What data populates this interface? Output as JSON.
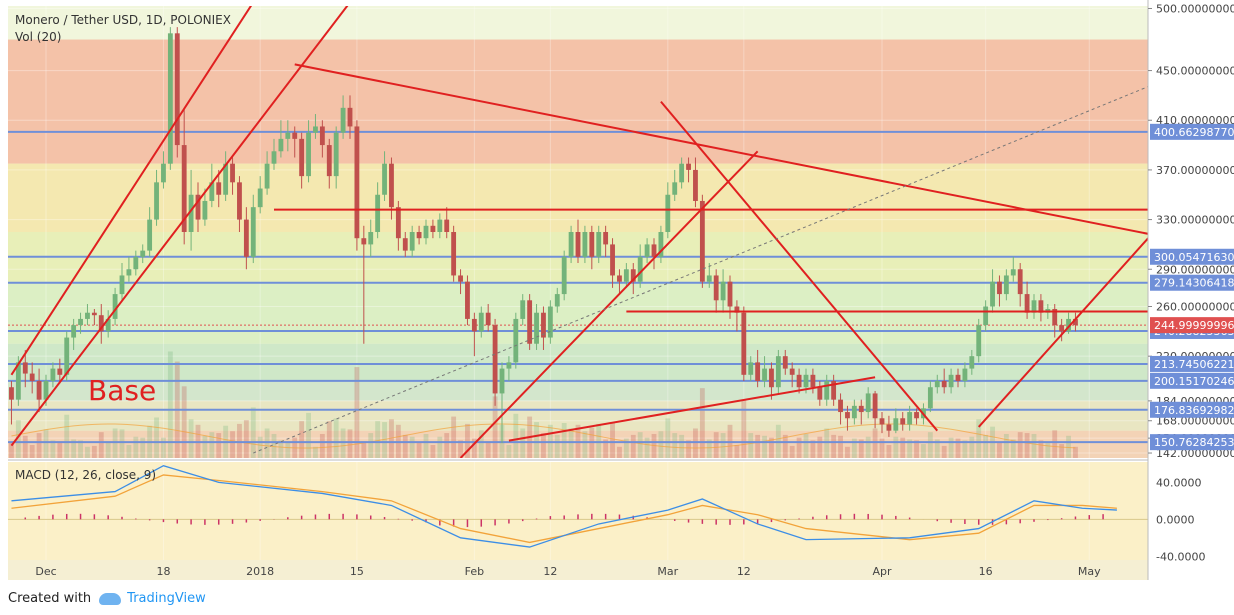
{
  "header": {
    "symbol_title": "Monero / Tether USD, 1D, POLONIEX",
    "volume_label": "Vol (20)",
    "macd_label": "MACD (12, 26, close, 9)"
  },
  "annotations": {
    "base_label": "Base"
  },
  "footer": {
    "created_with": "Created with",
    "brand": "TradingView"
  },
  "colors": {
    "bull": "#73b37a",
    "bear": "#c0504d",
    "trend": "#e02020",
    "level": "#6f8fd8",
    "price_tag": "#e05050",
    "tag_blue": "#6f8fd8",
    "macd": "#3c8ee6",
    "signal": "#f2a33a",
    "hist": "#cc3366"
  },
  "chart_data": {
    "type": "candlestick",
    "title": "Monero / Tether USD, 1D, POLONIEX",
    "price_axis": {
      "range": [
        138,
        502
      ],
      "ticks": [
        {
          "v": 500,
          "label": "500.00000000"
        },
        {
          "v": 450,
          "label": "450.00000000"
        },
        {
          "v": 410,
          "label": "410.00000000"
        },
        {
          "v": 370,
          "label": "370.00000000"
        },
        {
          "v": 330,
          "label": "330.00000000"
        },
        {
          "v": 290,
          "label": "290.00000000"
        },
        {
          "v": 260,
          "label": "260.00000000"
        },
        {
          "v": 220,
          "label": "220.00000000"
        },
        {
          "v": 184,
          "label": "184.00000000"
        },
        {
          "v": 168,
          "label": "168.00000000"
        },
        {
          "v": 154,
          "label": "154.00000000"
        },
        {
          "v": 142,
          "label": "142.00000000"
        }
      ]
    },
    "x_axis": {
      "labels": [
        {
          "day": 5,
          "label": "Dec"
        },
        {
          "day": 22,
          "label": "18"
        },
        {
          "day": 36,
          "label": "2018"
        },
        {
          "day": 50,
          "label": "15"
        },
        {
          "day": 67,
          "label": "Feb"
        },
        {
          "day": 78,
          "label": "12"
        },
        {
          "day": 95,
          "label": "Mar"
        },
        {
          "day": 106,
          "label": "12"
        },
        {
          "day": 126,
          "label": "Apr"
        },
        {
          "day": 141,
          "label": "16"
        },
        {
          "day": 156,
          "label": "May"
        }
      ]
    },
    "price_levels": [
      {
        "v": 400.6629877,
        "label": "400.66298770"
      },
      {
        "v": 300.0547163,
        "label": "300.05471630"
      },
      {
        "v": 279.14306418,
        "label": "279.14306418"
      },
      {
        "v": 240.28825363,
        "label": "240.28825363"
      },
      {
        "v": 213.74506221,
        "label": "213.74506221"
      },
      {
        "v": 200.15170246,
        "label": "200.15170246"
      },
      {
        "v": 176.83692982,
        "label": "176.83692982"
      },
      {
        "v": 150.76284253,
        "label": "150.76284253"
      }
    ],
    "current_price": {
      "v": 244.99999996,
      "label": "244.99999996"
    },
    "zones": [
      {
        "from": 375,
        "to": 475,
        "color": "#f4c2a8"
      },
      {
        "from": 320,
        "to": 375,
        "color": "#f4e8b0"
      },
      {
        "from": 280,
        "to": 320,
        "color": "#e8efb8"
      },
      {
        "from": 230,
        "to": 280,
        "color": "#dcefc4"
      },
      {
        "from": 200,
        "to": 230,
        "color": "#cfe8c8"
      },
      {
        "from": 184,
        "to": 200,
        "color": "#d3e6cc"
      },
      {
        "from": 160,
        "to": 184,
        "color": "#e9e6c2"
      },
      {
        "from": 138,
        "to": 160,
        "color": "#f3d3b6"
      }
    ],
    "horizontal_lines": [
      {
        "day_from": 38,
        "day_to": 165,
        "v": 338
      },
      {
        "day_from": 89,
        "day_to": 165,
        "v": 256
      }
    ],
    "trend_lines": [
      {
        "d1": 0,
        "p1": 148,
        "d2": 49,
        "p2": 505
      },
      {
        "d1": 0,
        "p1": 205,
        "d2": 35,
        "p2": 505
      },
      {
        "d1": 41,
        "p1": 455,
        "d2": 165,
        "p2": 318
      },
      {
        "d1": 65,
        "p1": 138,
        "d2": 108,
        "p2": 385
      },
      {
        "d1": 94,
        "p1": 425,
        "d2": 134,
        "p2": 160
      },
      {
        "d1": 72,
        "p1": 152,
        "d2": 125,
        "p2": 203
      },
      {
        "d1": 140,
        "p1": 163,
        "d2": 165,
        "p2": 318
      }
    ],
    "dashed_line": {
      "d1": 35,
      "p1": 142,
      "d2": 168,
      "p2": 445
    },
    "candles_compact": "0:195,185,165,200|1:185,215,180,220|2:215,206,195,225|3:206,200,190,215|4:200,185,175,210|5:185,200,180,205|6:200,210,195,215|7:210,205,198,218|8:205,235,200,240|9:235,245,225,250|10:245,250,238,255|11:250,255,245,262|12:255,253,245,258|13:253,240,230,262|14:240,250,235,257|15:250,270,245,275|16:270,285,265,295|17:285,290,280,300|18:290,300,285,305|19:300,305,295,310|20:305,330,300,340|21:330,360,325,370|22:360,375,355,385|23:375,480,370,485|24:480,390,380,485|25:390,320,310,420|26:320,350,305,370|27:350,330,320,360|28:330,345,325,355|29:345,360,340,375|30:360,350,340,370|31:350,375,345,385|32:375,360,350,380|33:360,330,320,365|34:330,300,290,340|35:300,340,295,350|36:340,355,335,365|37:355,375,350,385|38:375,385,370,395|39:385,395,380,410|40:395,400,385,410|41:400,395,380,405|42:395,365,355,400|43:365,400,360,410|44:400,405,395,415|45:405,390,380,410|46:390,365,355,395|47:365,400,355,405|48:400,420,395,430|49:420,405,395,430|50:405,315,305,410|51:315,310,230,325|52:310,320,300,330|53:320,350,315,360|54:350,375,345,385|55:375,340,330,380|56:340,315,305,345|57:315,305,300,320|58:305,320,300,325|59:320,315,310,325|60:315,325,310,330|61:325,320,315,330|62:320,330,315,335|63:330,320,315,340|64:320,285,280,325|65:285,280,270,290|66:280,250,245,285|67:250,240,220,255|68:240,255,235,260|69:255,245,240,262|70:245,190,180,250|71:190,210,150,215|72:210,215,200,220|73:215,250,210,255|74:250,265,245,270|75:265,230,225,270|76:230,255,225,262|77:255,235,225,260|78:235,260,230,265|79:260,270,255,275|80:270,300,265,305|81:300,320,295,325|82:320,300,295,330|83:300,320,295,325|84:320,300,290,325|85:300,320,295,325|86:320,310,300,325|87:310,285,275,315|88:285,280,270,290|89:280,290,275,295|90:290,280,270,295|91:280,300,275,310|92:300,310,295,315|93:310,300,290,315|94:300,320,295,325|95:320,350,315,360|96:350,360,345,370|97:360,375,355,380|98:375,370,360,380|99:370,345,340,380|100:345,280,275,350|101:280,285,275,295|102:285,265,255,290|103:265,280,255,290|104:280,260,250,285|105:260,255,240,265|106:255,205,200,260|107:205,215,200,220|108:215,200,195,225|109:200,210,195,220|110:210,195,185,215|111:195,220,190,225|112:220,210,205,225|113:210,205,195,215|114:205,195,190,210|115:195,205,190,210|116:205,195,190,210|117:195,185,180,200|118:185,200,180,205|119:200,185,180,205|120:185,175,165,190|121:175,170,160,180|122:170,180,165,185|123:180,175,165,185|124:175,190,170,195|125:190,170,162,192|126:170,165,158,175|127:165,160,155,172|128:160,170,158,178|129:170,165,160,175|130:165,175,160,180|131:175,170,165,178|132:170,178,165,182|133:178,195,175,200|134:195,200,190,205|135:200,195,190,210|136:195,205,190,210|137:205,200,195,210|138:200,210,195,215|139:210,220,205,225|140:220,245,215,250|141:245,260,240,265|142:260,280,255,290|143:280,270,260,285|144:270,285,265,290|145:285,290,280,300|146:290,270,260,295|147:270,255,250,280|148:255,265,250,270|149:265,255,248,270|150:255,258,250,262|151:258,245,235,262|152:245,240,232,250|153:240,250,238,255|154:250,245,240,255",
    "legend_position": "top-left"
  },
  "macd_data": {
    "type": "line",
    "title": "MACD (12, 26, close, 9)",
    "ylim": [
      -44,
      62
    ],
    "ticks": [
      {
        "v": 40,
        "label": "40.0000"
      },
      {
        "v": 0,
        "label": "0.0000"
      },
      {
        "v": -40,
        "label": "-40.0000"
      }
    ],
    "macd_points": [
      [
        0,
        20
      ],
      [
        15,
        30
      ],
      [
        22,
        58
      ],
      [
        30,
        40
      ],
      [
        45,
        28
      ],
      [
        55,
        15
      ],
      [
        65,
        -20
      ],
      [
        75,
        -30
      ],
      [
        85,
        -5
      ],
      [
        95,
        10
      ],
      [
        100,
        22
      ],
      [
        108,
        -5
      ],
      [
        115,
        -22
      ],
      [
        130,
        -20
      ],
      [
        140,
        -10
      ],
      [
        148,
        20
      ],
      [
        155,
        12
      ],
      [
        160,
        10
      ]
    ],
    "signal_points": [
      [
        0,
        12
      ],
      [
        15,
        25
      ],
      [
        22,
        48
      ],
      [
        30,
        42
      ],
      [
        45,
        30
      ],
      [
        55,
        20
      ],
      [
        65,
        -10
      ],
      [
        75,
        -25
      ],
      [
        85,
        -10
      ],
      [
        95,
        5
      ],
      [
        100,
        15
      ],
      [
        108,
        5
      ],
      [
        115,
        -10
      ],
      [
        130,
        -22
      ],
      [
        140,
        -15
      ],
      [
        148,
        15
      ],
      [
        155,
        15
      ],
      [
        160,
        12
      ]
    ]
  }
}
